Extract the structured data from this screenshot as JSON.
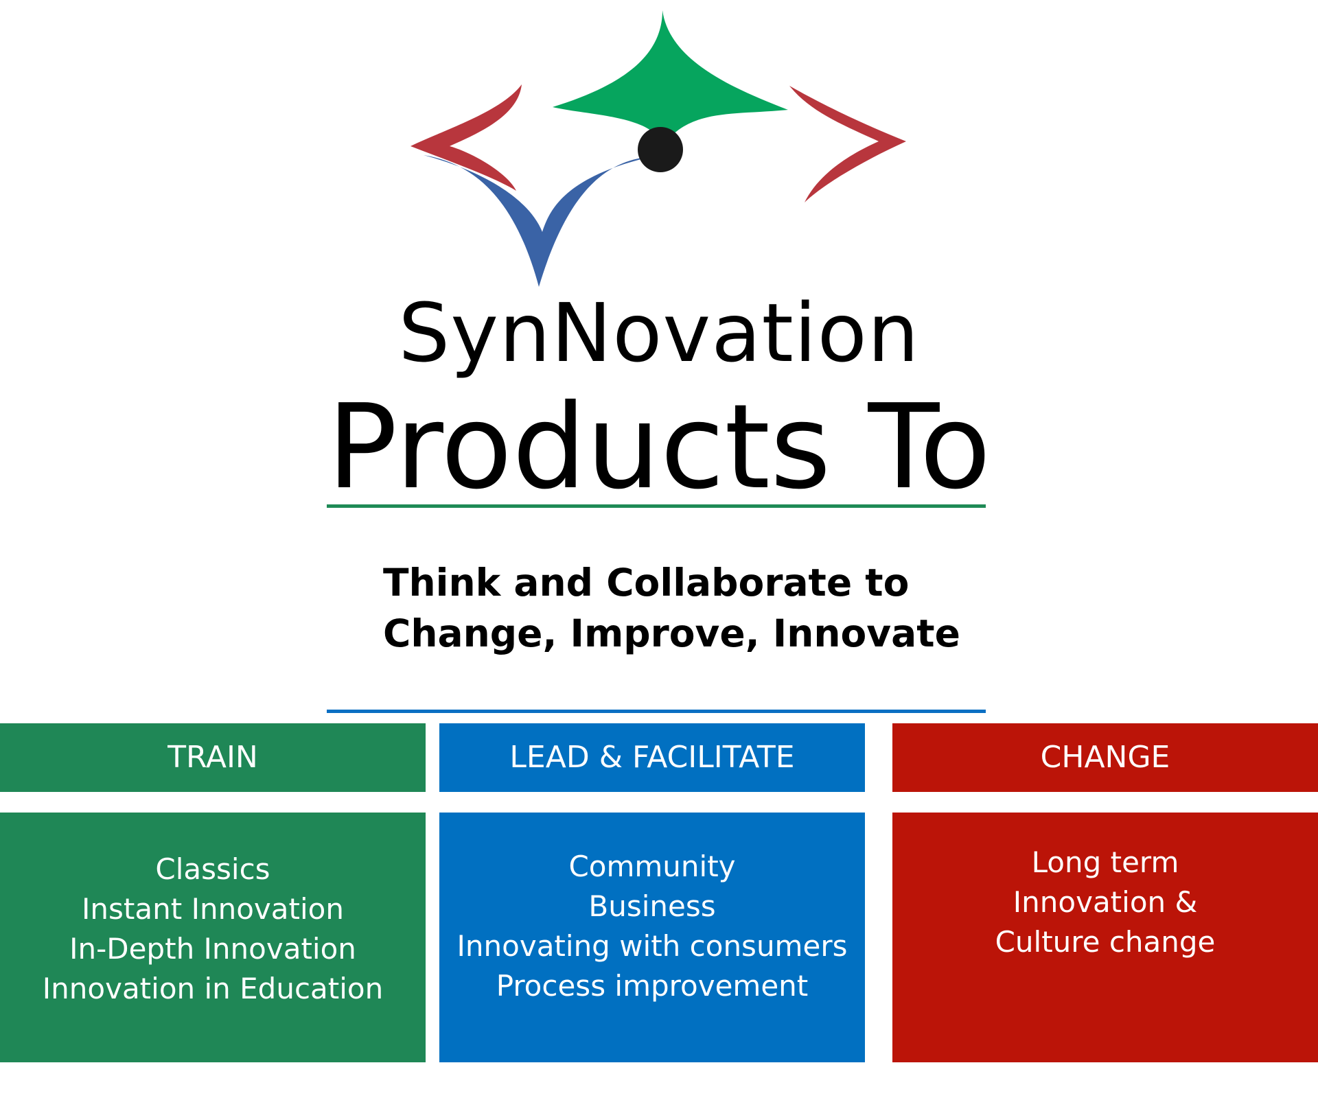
{
  "brand": {
    "name": "SynNovation",
    "logo_colors": {
      "green": "#06a55e",
      "blue": "#3a63a6",
      "red": "#b8363d",
      "dot": "#1a1a1a"
    }
  },
  "headline": "Products To",
  "tagline": {
    "line1": "Think and Collaborate to",
    "line2": "Change, Improve, Innovate"
  },
  "columns": [
    {
      "title": "TRAIN",
      "color": "#1f8756",
      "items": [
        "Classics",
        "Instant Innovation",
        "In-Depth Innovation",
        "Innovation in Education"
      ]
    },
    {
      "title": "LEAD & FACILITATE",
      "color": "#0170c1",
      "items": [
        "Community",
        "Business",
        "Innovating with consumers",
        "Process improvement"
      ]
    },
    {
      "title": "CHANGE",
      "color": "#bb1408",
      "items": [
        "Long term",
        "Innovation &",
        "Culture change"
      ]
    }
  ]
}
